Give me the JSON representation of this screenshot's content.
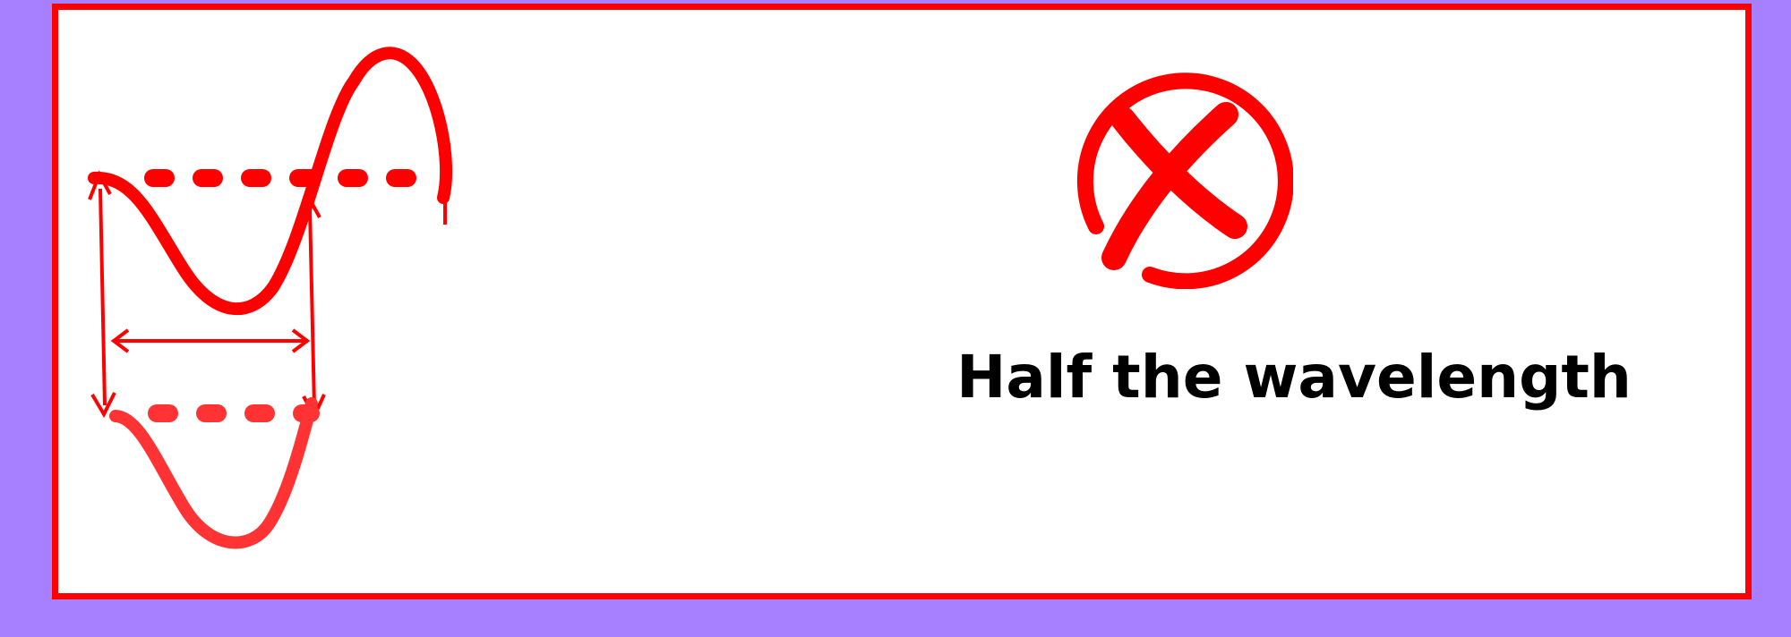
{
  "caption": {
    "text": "Half the wavelength"
  },
  "icons": {
    "status": "cross-icon",
    "status_meaning": "incorrect"
  },
  "colors": {
    "background": "#a680ff",
    "border": "#ff0000",
    "card": "#ffffff",
    "wave_primary": "#ff0000",
    "wave_secondary": "#ff3333",
    "caption_text": "#000000"
  }
}
